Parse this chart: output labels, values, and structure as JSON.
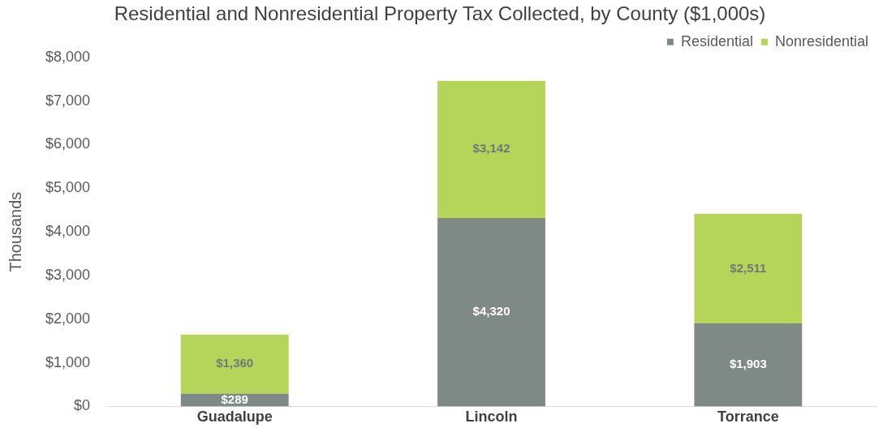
{
  "chart_data": {
    "type": "bar",
    "title": "Residential and Nonresidential Property Tax Collected, by County ($1,000s)",
    "ylabel": "Thousands",
    "categories": [
      "Guadalupe",
      "Lincoln",
      "Torrance"
    ],
    "stacked": true,
    "series": [
      {
        "name": "Residential",
        "color": "#7f8a87",
        "values": [
          289,
          4320,
          1903
        ],
        "value_labels": [
          "$289",
          "$4,320",
          "$1,903"
        ]
      },
      {
        "name": "Nonresidential",
        "color": "#b4d45a",
        "values": [
          1360,
          3142,
          2511
        ],
        "value_labels": [
          "$1,360",
          "$3,142",
          "$2,511"
        ]
      }
    ],
    "ylim": [
      0,
      8000
    ],
    "yticks": [
      {
        "value": 0,
        "label": "$0"
      },
      {
        "value": 1000,
        "label": "$1,000"
      },
      {
        "value": 2000,
        "label": "$2,000"
      },
      {
        "value": 3000,
        "label": "$3,000"
      },
      {
        "value": 4000,
        "label": "$4,000"
      },
      {
        "value": 5000,
        "label": "$5,000"
      },
      {
        "value": 6000,
        "label": "$6,000"
      },
      {
        "value": 7000,
        "label": "$7,000"
      },
      {
        "value": 8000,
        "label": "$8,000"
      }
    ],
    "grid": false,
    "legend": "top right"
  }
}
